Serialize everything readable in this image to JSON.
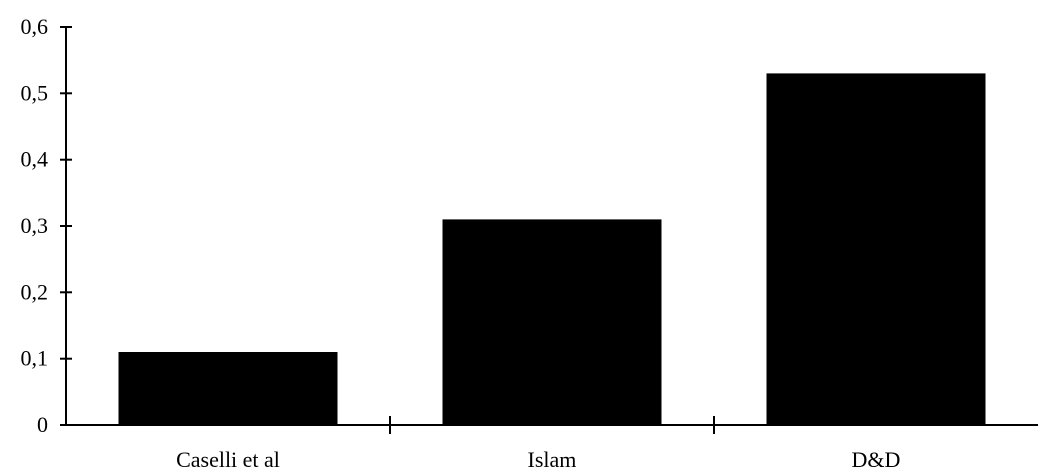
{
  "chart_data": {
    "type": "bar",
    "categories": [
      "Caselli et al",
      "Islam",
      "D&D"
    ],
    "values": [
      0.11,
      0.31,
      0.53
    ],
    "title": "",
    "xlabel": "",
    "ylabel": "",
    "ylim": [
      0,
      0.6
    ],
    "yticks": [
      0,
      0.1,
      0.2,
      0.3,
      0.4,
      0.5,
      0.6
    ],
    "ytick_labels": [
      "0",
      "0,1",
      "0,2",
      "0,3",
      "0,4",
      "0,5",
      "0,6"
    ],
    "grid": false,
    "legend": "none",
    "bar_color": "#000000",
    "axis_color": "#000000"
  }
}
